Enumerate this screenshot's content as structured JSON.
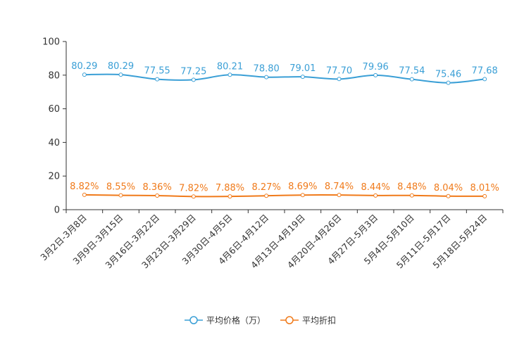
{
  "chart_data": {
    "type": "line",
    "categories": [
      "3月2日-3月8日",
      "3月9日-3月15日",
      "3月16日-3月22日",
      "3月23日-3月29日",
      "3月30日-4月5日",
      "4月6日-4月12日",
      "4月13日-4月19日",
      "4月20日-4月26日",
      "4月27日-5月3日",
      "5月4日-5月10日",
      "5月11日-5月17日",
      "5月18日-5月24日"
    ],
    "ylim": [
      0,
      100
    ],
    "yticks": [
      0,
      20,
      40,
      60,
      80,
      100
    ],
    "series": [
      {
        "name": "平均价格（万）",
        "color": "#3a9fd6",
        "values": [
          80.29,
          80.29,
          77.55,
          77.25,
          80.21,
          78.8,
          79.01,
          77.7,
          79.96,
          77.54,
          75.46,
          77.68
        ],
        "labels": [
          "80.29",
          "80.29",
          "77.55",
          "77.25",
          "80.21",
          "78.80",
          "79.01",
          "77.70",
          "79.96",
          "77.54",
          "75.46",
          "77.68"
        ]
      },
      {
        "name": "平均折扣",
        "color": "#f07a1a",
        "values": [
          8.82,
          8.55,
          8.36,
          7.82,
          7.88,
          8.27,
          8.69,
          8.74,
          8.44,
          8.48,
          8.04,
          8.01
        ],
        "labels": [
          "8.82%",
          "8.55%",
          "8.36%",
          "7.82%",
          "7.88%",
          "8.27%",
          "8.69%",
          "8.74%",
          "8.44%",
          "8.48%",
          "8.04%",
          "8.01%"
        ]
      }
    ],
    "legend_position": "bottom-center",
    "grid": false
  }
}
